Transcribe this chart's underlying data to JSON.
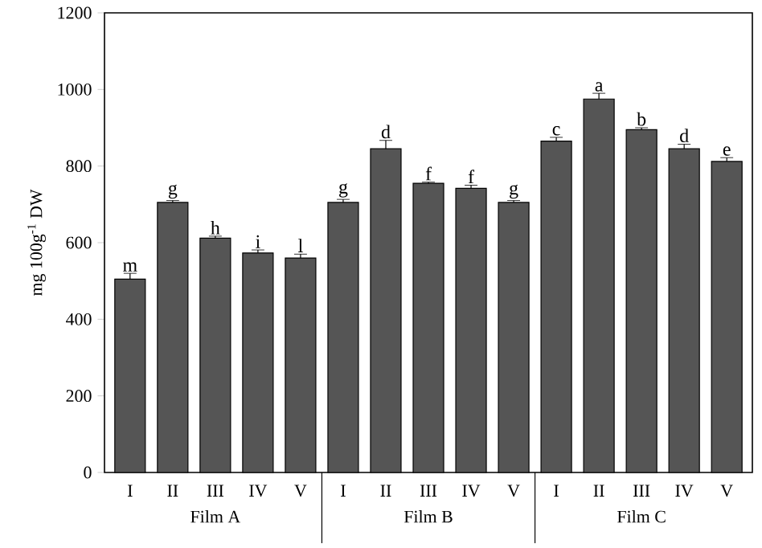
{
  "chart_data": {
    "type": "bar",
    "ylabel": "mg 100g$^{-1}$ DW",
    "categories": [
      "I",
      "II",
      "III",
      "IV",
      "V",
      "I",
      "II",
      "III",
      "IV",
      "V",
      "I",
      "II",
      "III",
      "IV",
      "V"
    ],
    "values": [
      505,
      705,
      612,
      573,
      560,
      705,
      845,
      755,
      742,
      705,
      865,
      975,
      895,
      845,
      812
    ],
    "errors": [
      15,
      5,
      5,
      8,
      10,
      8,
      22,
      3,
      8,
      5,
      10,
      15,
      5,
      12,
      10
    ],
    "value_labels": [
      "m",
      "g",
      "h",
      "i",
      "l",
      "g",
      "d",
      "f",
      "f",
      "g",
      "c",
      "a",
      "b",
      "d",
      "e"
    ],
    "color": "#555555",
    "annotations": [
      "Film A",
      "Film B",
      "Film C"
    ],
    "ylim": [
      0,
      1200
    ],
    "yticks": [
      0,
      200,
      400,
      600,
      800,
      1000,
      1200
    ]
  }
}
